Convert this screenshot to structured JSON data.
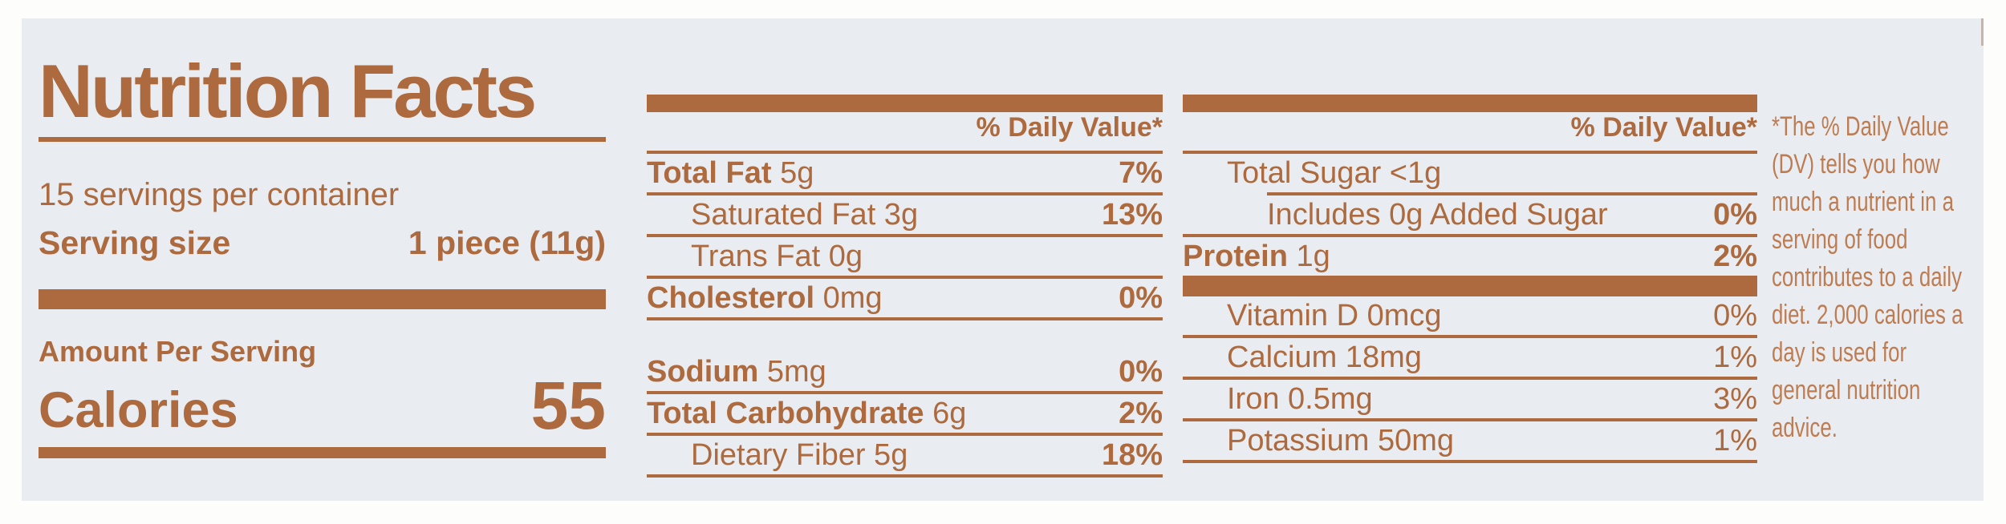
{
  "colors": {
    "ink": "#ad6a3e",
    "ink_light": "#bd7c52",
    "label_bg": "#e9edf2",
    "page_bg": "#fdfdfb"
  },
  "header": {
    "title": "Nutrition Facts",
    "servings_per_container": "15 servings per container",
    "serving_size_label": "Serving size",
    "serving_size_value": "1 piece (11g)",
    "amount_per_serving": "Amount Per Serving",
    "calories_label": "Calories",
    "calories_value": "55"
  },
  "daily_value_header": "% Daily Value*",
  "nutrients_middle": [
    {
      "name": "Total Fat",
      "amount": "5g",
      "dv": "7%",
      "bold": true,
      "dv_bold": true,
      "indent": 0
    },
    {
      "name": "Saturated Fat",
      "amount": "3g",
      "dv": "13%",
      "bold": false,
      "dv_bold": true,
      "indent": 1
    },
    {
      "name": "Trans Fat",
      "amount": "0g",
      "dv": "",
      "bold": false,
      "dv_bold": false,
      "indent": 1
    },
    {
      "name": "Cholesterol",
      "amount": "0mg",
      "dv": "0%",
      "bold": true,
      "dv_bold": true,
      "indent": 0
    },
    {
      "name": "Sodium",
      "amount": "5mg",
      "dv": "0%",
      "bold": true,
      "dv_bold": true,
      "indent": 0,
      "gap_before": true
    },
    {
      "name": "Total Carbohydrate",
      "amount": "6g",
      "dv": "2%",
      "bold": true,
      "dv_bold": true,
      "indent": 0
    },
    {
      "name": "Dietary Fiber",
      "amount": "5g",
      "dv": "18%",
      "bold": false,
      "dv_bold": true,
      "indent": 1
    }
  ],
  "nutrients_right_macros": [
    {
      "name": "Total Sugar",
      "amount": "<1g",
      "dv": "",
      "bold": false,
      "dv_bold": false,
      "indent": 1,
      "sep_indent": true
    },
    {
      "name": "Includes 0g Added Sugar",
      "amount": "",
      "dv": "0%",
      "bold": false,
      "dv_bold": true,
      "indent": 2
    },
    {
      "name": "Protein",
      "amount": "1g",
      "dv": "2%",
      "bold": true,
      "dv_bold": true,
      "indent": 0,
      "sep_after": false
    }
  ],
  "nutrients_right_micros": [
    {
      "name": "Vitamin D",
      "amount": "0mcg",
      "dv": "0%",
      "bold": false,
      "dv_bold": false,
      "indent": 1
    },
    {
      "name": "Calcium",
      "amount": "18mg",
      "dv": "1%",
      "bold": false,
      "dv_bold": false,
      "indent": 1
    },
    {
      "name": "Iron",
      "amount": "0.5mg",
      "dv": "3%",
      "bold": false,
      "dv_bold": false,
      "indent": 1
    },
    {
      "name": "Potassium",
      "amount": "50mg",
      "dv": "1%",
      "bold": false,
      "dv_bold": false,
      "indent": 1
    }
  ],
  "footnote": {
    "text": "*The % Daily Value (DV) tells you how much a nutrient in a serving of food contributes to a daily diet. 2,000 calories a day is used for general nutrition advice.",
    "lines": [
      "*The % Daily Value",
      "(DV) tells you how",
      "much a nutrient in a",
      "serving of food",
      "contributes to a daily",
      "diet. 2,000 calories a",
      "day is used for",
      "general nutrition",
      "advice."
    ]
  }
}
